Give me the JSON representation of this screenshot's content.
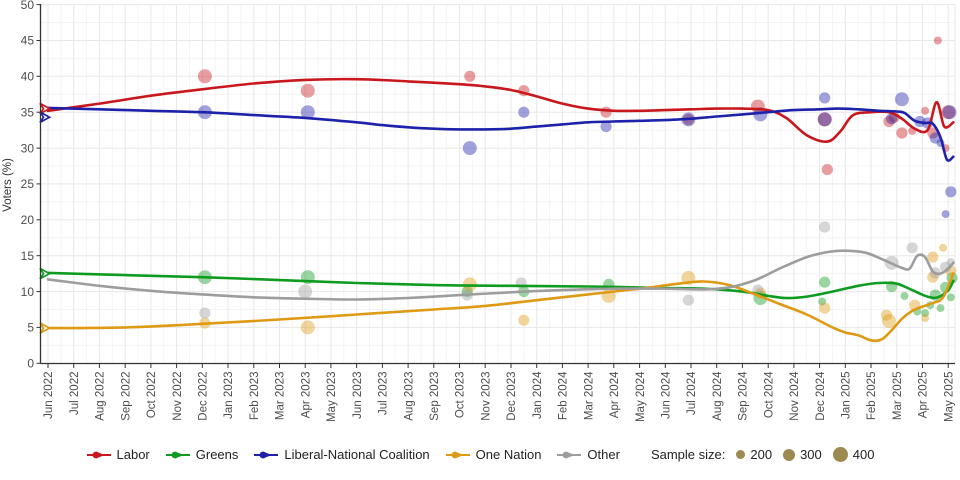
{
  "chart_data": {
    "type": "line+scatter",
    "title": "",
    "ylabel": "Voters (%)",
    "ylim": [
      0,
      50
    ],
    "ytick_step": 5,
    "grid": true,
    "legend_position": "bottom",
    "x_tick_labels": [
      "Jun 2022",
      "Jul 2022",
      "Aug 2022",
      "Sep 2022",
      "Oct 2022",
      "Nov 2022",
      "Dec 2022",
      "Jan 2023",
      "Feb 2023",
      "Mar 2023",
      "Apr 2023",
      "May 2023",
      "Jun 2023",
      "Jul 2023",
      "Aug 2023",
      "Sep 2023",
      "Oct 2023",
      "Nov 2023",
      "Dec 2023",
      "Jan 2024",
      "Feb 2024",
      "Mar 2024",
      "Apr 2024",
      "May 2024",
      "Jun 2024",
      "Jul 2024",
      "Aug 2024",
      "Sep 2024",
      "Oct 2024",
      "Nov 2024",
      "Dec 2024",
      "Jan 2025",
      "Feb 2025",
      "Mar 2025",
      "Apr 2025",
      "May 2025"
    ],
    "series": [
      {
        "name": "Labor",
        "color": "#c9181d",
        "election_result": 35.5,
        "trend": [
          [
            0,
            35.2
          ],
          [
            2,
            36.2
          ],
          [
            4,
            37.3
          ],
          [
            6,
            38.2
          ],
          [
            8,
            39.0
          ],
          [
            10,
            39.5
          ],
          [
            12,
            39.6
          ],
          [
            14,
            39.3
          ],
          [
            16,
            38.9
          ],
          [
            17,
            38.6
          ],
          [
            18,
            38.1
          ],
          [
            19,
            37.2
          ],
          [
            20,
            36.2
          ],
          [
            21,
            35.5
          ],
          [
            22,
            35.2
          ],
          [
            23,
            35.2
          ],
          [
            24,
            35.3
          ],
          [
            25,
            35.4
          ],
          [
            26,
            35.5
          ],
          [
            27,
            35.5
          ],
          [
            28,
            35.3
          ],
          [
            28.7,
            34.2
          ],
          [
            29.5,
            31.8
          ],
          [
            30.3,
            30.9
          ],
          [
            30.8,
            32.3
          ],
          [
            31.3,
            34.6
          ],
          [
            32,
            35.0
          ],
          [
            32.7,
            35.0
          ],
          [
            33.2,
            34.1
          ],
          [
            33.7,
            32.7
          ],
          [
            34.2,
            32.5
          ],
          [
            34.55,
            36.4
          ],
          [
            34.85,
            33.0
          ],
          [
            35.2,
            33.6
          ]
        ],
        "polls": [
          [
            6.1,
            40,
            400
          ],
          [
            10.1,
            38,
            400
          ],
          [
            16.4,
            40,
            300
          ],
          [
            18.5,
            38,
            300
          ],
          [
            21.7,
            35,
            300
          ],
          [
            24.9,
            34,
            300
          ],
          [
            27.6,
            35.8,
            400
          ],
          [
            30.2,
            34,
            400
          ],
          [
            30.3,
            27,
            300
          ],
          [
            32.7,
            33.7,
            300
          ],
          [
            32.9,
            34.3,
            300
          ],
          [
            33.2,
            32.1,
            300
          ],
          [
            33.6,
            32.4,
            200
          ],
          [
            34.1,
            35.2,
            200
          ],
          [
            34.4,
            32.1,
            300
          ],
          [
            34.6,
            45,
            200
          ],
          [
            34.9,
            30,
            200
          ],
          [
            35,
            35,
            400
          ]
        ]
      },
      {
        "name": "Greens",
        "color": "#0e9b20",
        "election_result": 12.5,
        "trend": [
          [
            0,
            12.6
          ],
          [
            3,
            12.3
          ],
          [
            6,
            12.0
          ],
          [
            9,
            11.6
          ],
          [
            12,
            11.2
          ],
          [
            15,
            10.9
          ],
          [
            18,
            10.8
          ],
          [
            21,
            10.7
          ],
          [
            24,
            10.5
          ],
          [
            25.5,
            10.4
          ],
          [
            27,
            10.0
          ],
          [
            28,
            9.4
          ],
          [
            28.7,
            9.1
          ],
          [
            29.5,
            9.3
          ],
          [
            30.5,
            10.0
          ],
          [
            31.5,
            10.8
          ],
          [
            32.3,
            11.2
          ],
          [
            33,
            11.1
          ],
          [
            33.6,
            10.2
          ],
          [
            34.2,
            9.3
          ],
          [
            34.6,
            9.2
          ],
          [
            35,
            10.2
          ],
          [
            35.2,
            11.5
          ]
        ],
        "polls": [
          [
            6.1,
            12,
            400
          ],
          [
            10.1,
            12,
            400
          ],
          [
            16.3,
            10,
            300
          ],
          [
            18.5,
            10,
            300
          ],
          [
            21.8,
            11,
            300
          ],
          [
            27.7,
            9.1,
            400
          ],
          [
            30.2,
            11.3,
            300
          ],
          [
            30.1,
            8.6,
            200
          ],
          [
            32.8,
            10.7,
            300
          ],
          [
            33.3,
            9.4,
            200
          ],
          [
            33.8,
            7.2,
            200
          ],
          [
            34.1,
            7.0,
            200
          ],
          [
            34.3,
            8.1,
            200
          ],
          [
            34.5,
            9.5,
            300
          ],
          [
            34.7,
            7.7,
            200
          ],
          [
            34.9,
            10.6,
            300
          ],
          [
            35.1,
            9.2,
            200
          ],
          [
            35.15,
            11.9,
            300
          ]
        ]
      },
      {
        "name": "Liberal-National Coalition",
        "color": "#1e22aa",
        "election_result": 34.3,
        "trend": [
          [
            0,
            35.6
          ],
          [
            2,
            35.4
          ],
          [
            4,
            35.2
          ],
          [
            6,
            35.0
          ],
          [
            8,
            34.6
          ],
          [
            10,
            34.2
          ],
          [
            12,
            33.6
          ],
          [
            13,
            33.2
          ],
          [
            14,
            32.9
          ],
          [
            15,
            32.7
          ],
          [
            16,
            32.6
          ],
          [
            17,
            32.6
          ],
          [
            18,
            32.7
          ],
          [
            19,
            33.0
          ],
          [
            20,
            33.3
          ],
          [
            21,
            33.6
          ],
          [
            22,
            33.7
          ],
          [
            23,
            33.8
          ],
          [
            24,
            33.9
          ],
          [
            25,
            34.1
          ],
          [
            26,
            34.4
          ],
          [
            27,
            34.7
          ],
          [
            28,
            35.0
          ],
          [
            29,
            35.3
          ],
          [
            30,
            35.4
          ],
          [
            30.7,
            35.5
          ],
          [
            31.5,
            35.4
          ],
          [
            32.3,
            35.2
          ],
          [
            33,
            35.1
          ],
          [
            33.3,
            34.9
          ],
          [
            33.7,
            33.8
          ],
          [
            34.1,
            33.5
          ],
          [
            34.4,
            33.4
          ],
          [
            34.7,
            31.5
          ],
          [
            34.95,
            28.4
          ],
          [
            35.2,
            28.8
          ]
        ],
        "polls": [
          [
            6.1,
            35,
            400
          ],
          [
            10.1,
            35,
            400
          ],
          [
            16.4,
            30,
            400
          ],
          [
            18.5,
            35,
            300
          ],
          [
            21.7,
            33,
            300
          ],
          [
            24.9,
            34,
            400
          ],
          [
            27.7,
            34.7,
            400
          ],
          [
            30.2,
            37,
            300
          ],
          [
            30.2,
            34,
            400
          ],
          [
            32.8,
            34.1,
            300
          ],
          [
            33.2,
            36.8,
            400
          ],
          [
            33.9,
            33.7,
            300
          ],
          [
            34.2,
            33.5,
            300
          ],
          [
            34.5,
            31.4,
            300
          ],
          [
            34.7,
            30.7,
            200
          ],
          [
            34.9,
            20.8,
            200
          ],
          [
            35.1,
            23.9,
            300
          ],
          [
            35.05,
            35,
            400
          ]
        ]
      },
      {
        "name": "One Nation",
        "color": "#de9a14",
        "election_result": 4.9,
        "trend": [
          [
            0,
            4.9
          ],
          [
            3,
            5.0
          ],
          [
            6,
            5.5
          ],
          [
            9,
            6.1
          ],
          [
            12,
            6.8
          ],
          [
            15,
            7.5
          ],
          [
            17,
            8.0
          ],
          [
            19,
            8.8
          ],
          [
            21,
            9.6
          ],
          [
            23,
            10.4
          ],
          [
            24.5,
            11.1
          ],
          [
            25.5,
            11.4
          ],
          [
            26.5,
            10.9
          ],
          [
            27.5,
            9.6
          ],
          [
            28.5,
            8.2
          ],
          [
            29.5,
            6.8
          ],
          [
            30.5,
            5.0
          ],
          [
            31,
            4.3
          ],
          [
            31.5,
            3.9
          ],
          [
            32,
            3.2
          ],
          [
            32.4,
            3.3
          ],
          [
            32.8,
            4.6
          ],
          [
            33.2,
            6.2
          ],
          [
            33.6,
            7.3
          ],
          [
            34,
            7.9
          ],
          [
            34.4,
            8.4
          ],
          [
            34.8,
            9.2
          ],
          [
            35.2,
            12.5
          ]
        ],
        "polls": [
          [
            6.1,
            5.6,
            300
          ],
          [
            10.1,
            5,
            400
          ],
          [
            16.4,
            11,
            400
          ],
          [
            18.5,
            6,
            300
          ],
          [
            21.8,
            9.4,
            400
          ],
          [
            24.9,
            11.9,
            400
          ],
          [
            27.7,
            9.8,
            300
          ],
          [
            30.2,
            7.7,
            300
          ],
          [
            32.6,
            6.7,
            300
          ],
          [
            32.7,
            5.9,
            400
          ],
          [
            33.7,
            8.1,
            300
          ],
          [
            34.1,
            6.3,
            200
          ],
          [
            34.4,
            14.8,
            300
          ],
          [
            34.4,
            12,
            300
          ],
          [
            34.8,
            16.1,
            200
          ],
          [
            35.1,
            12.9,
            300
          ]
        ]
      },
      {
        "name": "Other",
        "color": "#9d9d9d",
        "election_result": null,
        "trend": [
          [
            0,
            11.7
          ],
          [
            2,
            10.8
          ],
          [
            4,
            10.1
          ],
          [
            6,
            9.6
          ],
          [
            8,
            9.2
          ],
          [
            10,
            9.0
          ],
          [
            12,
            8.9
          ],
          [
            14,
            9.1
          ],
          [
            16,
            9.5
          ],
          [
            18,
            9.9
          ],
          [
            20,
            10.2
          ],
          [
            22,
            10.4
          ],
          [
            24,
            10.4
          ],
          [
            25.5,
            10.3
          ],
          [
            26.5,
            10.6
          ],
          [
            27.5,
            11.6
          ],
          [
            28.5,
            13.3
          ],
          [
            29.5,
            14.8
          ],
          [
            30.3,
            15.5
          ],
          [
            31,
            15.7
          ],
          [
            31.8,
            15.4
          ],
          [
            32.5,
            14.4
          ],
          [
            33.2,
            13.3
          ],
          [
            33.5,
            13.2
          ],
          [
            33.8,
            15.0
          ],
          [
            34.1,
            14.8
          ],
          [
            34.4,
            12.8
          ],
          [
            34.7,
            12.5
          ],
          [
            35,
            13.2
          ],
          [
            35.2,
            14.0
          ]
        ],
        "polls": [
          [
            6.1,
            7,
            300
          ],
          [
            10,
            10,
            400
          ],
          [
            16.3,
            9.5,
            300
          ],
          [
            18.4,
            11.2,
            300
          ],
          [
            24.9,
            8.8,
            300
          ],
          [
            27.6,
            10.2,
            300
          ],
          [
            30.2,
            19,
            300
          ],
          [
            32.8,
            14,
            400
          ],
          [
            33.6,
            16.1,
            300
          ],
          [
            34.5,
            12.6,
            300
          ],
          [
            34.9,
            13.4,
            300
          ],
          [
            35.1,
            14.1,
            200
          ]
        ]
      }
    ],
    "sample_size_legend": {
      "label": "Sample size:",
      "sizes": [
        200,
        300,
        400
      ],
      "color": "#9c8a50",
      "radius_px": {
        "200": 4,
        "300": 5.6,
        "400": 7
      }
    }
  }
}
